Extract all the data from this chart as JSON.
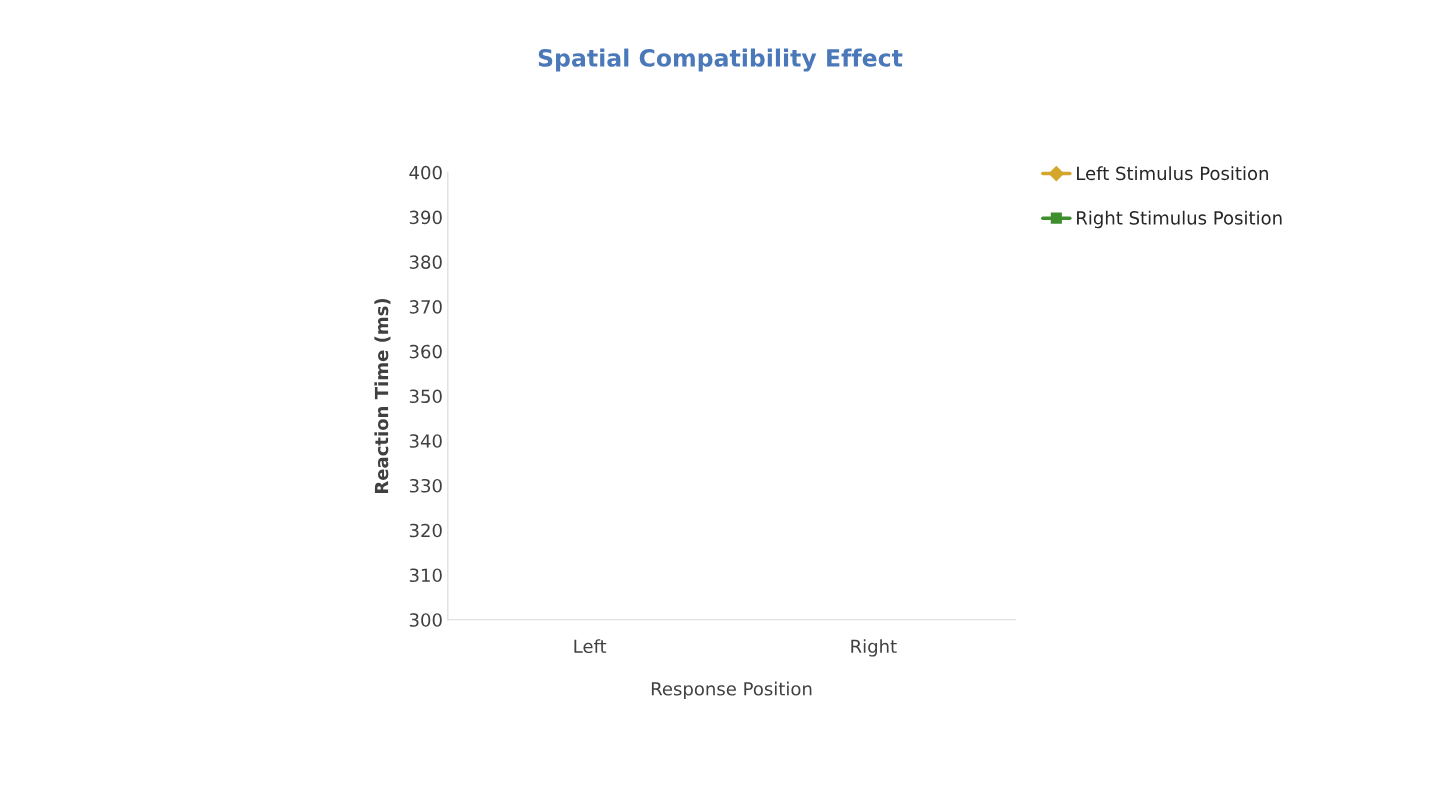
{
  "chart_data": {
    "type": "line",
    "title": "Spatial Compatibility Effect",
    "xlabel": "Response Position",
    "ylabel": "Reaction Time (ms)",
    "categories": [
      "Left",
      "Right"
    ],
    "series": [
      {
        "name": "Left Stimulus Position",
        "color": "#d4a72c",
        "marker": "diamond",
        "values": [
          null,
          null
        ]
      },
      {
        "name": "Right Stimulus Position",
        "color": "#3f8f2f",
        "marker": "square",
        "values": [
          null,
          null
        ]
      }
    ],
    "ylim": [
      300,
      400
    ],
    "yticks": [
      300,
      310,
      320,
      330,
      340,
      350,
      360,
      370,
      380,
      390,
      400
    ],
    "grid": false,
    "legend": "top right"
  }
}
